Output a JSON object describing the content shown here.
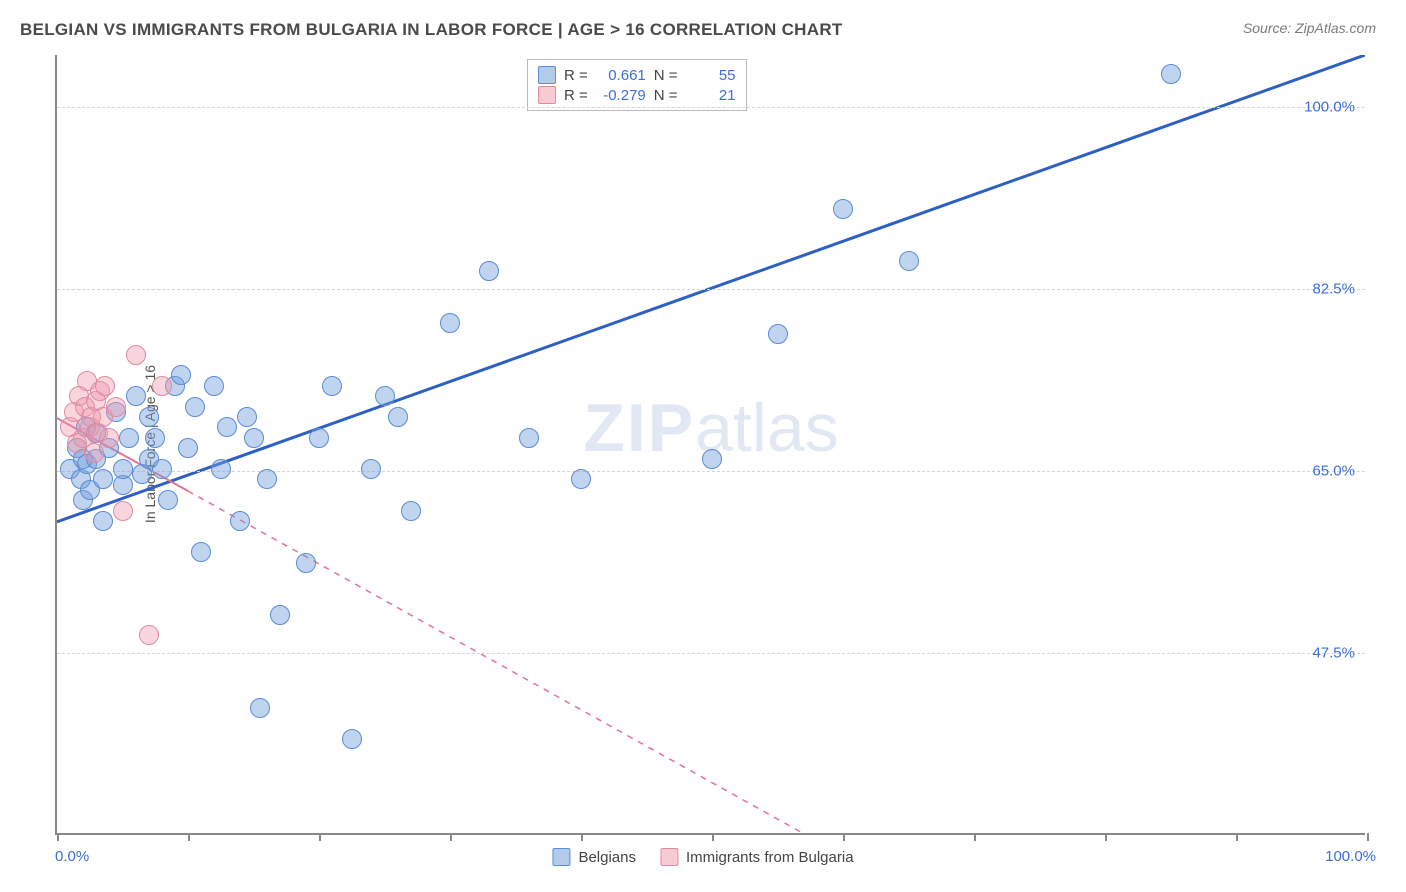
{
  "title": "BELGIAN VS IMMIGRANTS FROM BULGARIA IN LABOR FORCE | AGE > 16 CORRELATION CHART",
  "source_label": "Source: ZipAtlas.com",
  "y_axis_label": "In Labor Force | Age > 16",
  "watermark_bold": "ZIP",
  "watermark_rest": "atlas",
  "chart": {
    "type": "scatter",
    "background_color": "#ffffff",
    "grid_color": "#d5d5d5",
    "axis_color": "#888888",
    "xlim": [
      0,
      100
    ],
    "ylim": [
      30,
      105
    ],
    "x_ticks": [
      0,
      10,
      20,
      30,
      40,
      50,
      60,
      70,
      80,
      90,
      100
    ],
    "y_ticks": [
      {
        "value": 47.5,
        "label": "47.5%"
      },
      {
        "value": 65.0,
        "label": "65.0%"
      },
      {
        "value": 82.5,
        "label": "82.5%"
      },
      {
        "value": 100.0,
        "label": "100.0%"
      }
    ],
    "x_axis_min_label": "0.0%",
    "x_axis_max_label": "100.0%",
    "marker_radius": 10,
    "series": [
      {
        "id": "belgians",
        "label": "Belgians",
        "color_fill": "rgba(115,160,220,0.45)",
        "color_stroke": "#5a8cd8",
        "line_color": "#2d5fc4",
        "line_width": 3,
        "line_dash": "solid",
        "R": "0.661",
        "N": "55",
        "trend": {
          "x1": 0,
          "y1": 60,
          "x2": 100,
          "y2": 105
        },
        "points": [
          [
            1,
            65
          ],
          [
            1.5,
            67
          ],
          [
            1.8,
            64
          ],
          [
            2,
            66
          ],
          [
            2,
            62
          ],
          [
            2.2,
            69
          ],
          [
            2.3,
            65.5
          ],
          [
            2.5,
            63
          ],
          [
            3,
            66
          ],
          [
            3,
            68.5
          ],
          [
            3.5,
            64
          ],
          [
            3.5,
            60
          ],
          [
            4,
            67
          ],
          [
            4.5,
            70.5
          ],
          [
            5,
            63.5
          ],
          [
            5,
            65
          ],
          [
            5.5,
            68
          ],
          [
            6,
            72
          ],
          [
            6.5,
            64.5
          ],
          [
            7,
            70
          ],
          [
            7,
            66
          ],
          [
            7.5,
            68
          ],
          [
            8,
            65
          ],
          [
            8.5,
            62
          ],
          [
            9,
            73
          ],
          [
            9.5,
            74
          ],
          [
            10,
            67
          ],
          [
            10.5,
            71
          ],
          [
            11,
            57
          ],
          [
            12,
            73
          ],
          [
            12.5,
            65
          ],
          [
            13,
            69
          ],
          [
            14,
            60
          ],
          [
            14.5,
            70
          ],
          [
            15,
            68
          ],
          [
            15.5,
            42
          ],
          [
            16,
            64
          ],
          [
            17,
            51
          ],
          [
            19,
            56
          ],
          [
            20,
            68
          ],
          [
            21,
            73
          ],
          [
            22.5,
            39
          ],
          [
            24,
            65
          ],
          [
            25,
            72
          ],
          [
            26,
            70
          ],
          [
            27,
            61
          ],
          [
            30,
            79
          ],
          [
            33,
            84
          ],
          [
            36,
            68
          ],
          [
            40,
            64
          ],
          [
            50,
            66
          ],
          [
            55,
            78
          ],
          [
            60,
            90
          ],
          [
            65,
            85
          ],
          [
            85,
            103
          ]
        ]
      },
      {
        "id": "bulgarians",
        "label": "Immigrants from Bulgaria",
        "color_fill": "rgba(240,150,170,0.40)",
        "color_stroke": "#e08ca0",
        "line_color": "#e57390",
        "line_width": 2,
        "line_dash": "dashed",
        "R": "-0.279",
        "N": "21",
        "trend": {
          "x1": 0,
          "y1": 70,
          "x2": 57,
          "y2": 30
        },
        "trend_solid_until_x": 10,
        "points": [
          [
            1,
            69
          ],
          [
            1.3,
            70.5
          ],
          [
            1.5,
            67.5
          ],
          [
            1.7,
            72
          ],
          [
            2,
            68
          ],
          [
            2.1,
            71
          ],
          [
            2.3,
            73.5
          ],
          [
            2.5,
            69
          ],
          [
            2.6,
            70
          ],
          [
            2.8,
            66.5
          ],
          [
            3,
            71.5
          ],
          [
            3.1,
            68.5
          ],
          [
            3.3,
            72.5
          ],
          [
            3.5,
            70
          ],
          [
            3.7,
            73
          ],
          [
            4,
            68
          ],
          [
            4.5,
            71
          ],
          [
            5,
            61
          ],
          [
            6,
            76
          ],
          [
            7,
            49
          ],
          [
            8,
            73
          ]
        ]
      }
    ]
  },
  "legend": {
    "stats_label_R": "R =",
    "stats_label_N": "N ="
  }
}
